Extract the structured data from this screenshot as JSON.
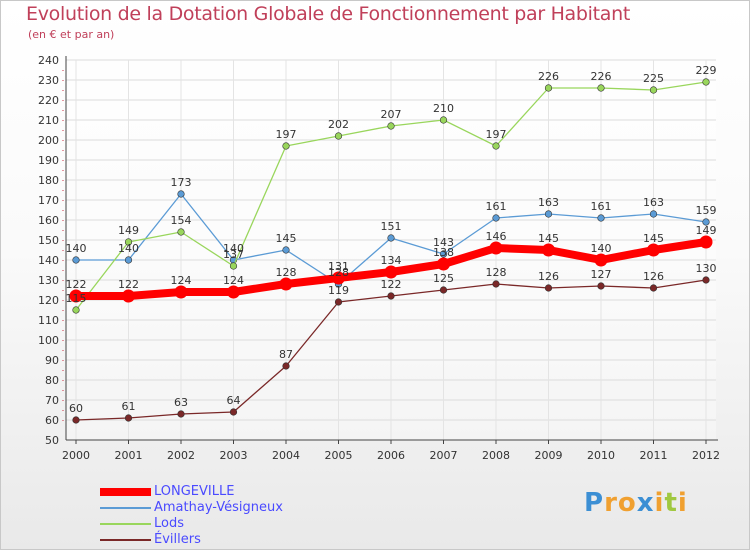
{
  "header": {
    "title": "Evolution de la Dotation Globale de Fonctionnement par Habitant",
    "subtitle": "(en € et par an)"
  },
  "brand": {
    "letters": [
      "P",
      "r",
      "o",
      "x",
      "i",
      "t",
      "i"
    ],
    "colors": [
      "#3c8fd4",
      "#f0a030",
      "#f0a030",
      "#3c8fd4",
      "#f0a030",
      "#a0c840",
      "#f0a030"
    ]
  },
  "chart_data": {
    "type": "line",
    "title": "Evolution de la Dotation Globale de Fonctionnement par Habitant",
    "subtitle": "(en € et par an)",
    "xlabel": "",
    "ylabel": "",
    "ylim": [
      50,
      240
    ],
    "yticks": [
      50,
      60,
      70,
      80,
      90,
      100,
      110,
      120,
      130,
      140,
      150,
      160,
      170,
      180,
      190,
      200,
      210,
      220,
      230,
      240
    ],
    "grid": true,
    "legend_position": "bottom-left",
    "x": [
      "2000",
      "2001",
      "2002",
      "2003",
      "2004",
      "2005",
      "2006",
      "2007",
      "2008",
      "2009",
      "2010",
      "2011",
      "2012"
    ],
    "series": [
      {
        "name": "LONGEVILLE",
        "color": "#ff0000",
        "emphasis": true,
        "values": [
          122,
          122,
          124,
          124,
          128,
          131,
          134,
          138,
          146,
          145,
          140,
          145,
          149
        ]
      },
      {
        "name": "Amathay-Vésigneux",
        "color": "#5b9bd5",
        "emphasis": false,
        "values": [
          140,
          140,
          173,
          140,
          145,
          128,
          151,
          143,
          161,
          163,
          161,
          163,
          159
        ]
      },
      {
        "name": "Lods",
        "color": "#99d65c",
        "emphasis": false,
        "values": [
          115,
          149,
          154,
          137,
          197,
          202,
          207,
          210,
          197,
          226,
          226,
          225,
          229
        ]
      },
      {
        "name": "Évillers",
        "color": "#7a2828",
        "emphasis": false,
        "values": [
          60,
          61,
          63,
          64,
          87,
          119,
          122,
          125,
          128,
          126,
          127,
          126,
          130
        ]
      }
    ]
  }
}
